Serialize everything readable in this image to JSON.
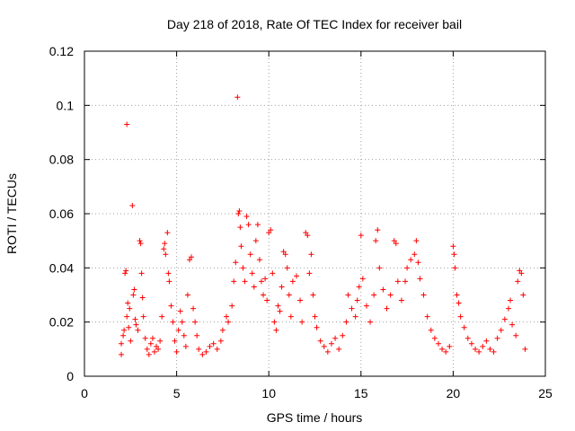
{
  "chart_data": {
    "type": "scatter",
    "title": "Day 218 of 2018, Rate Of TEC Index for receiver bail",
    "xlabel": "GPS time / hours",
    "ylabel": "ROTI / TECUs",
    "xlim": [
      0,
      25
    ],
    "ylim": [
      0,
      0.12
    ],
    "xticks": [
      0,
      5,
      10,
      15,
      20,
      25
    ],
    "xtick_labels": [
      "0",
      "5",
      "10",
      "15",
      "20",
      "25"
    ],
    "yticks": [
      0,
      0.02,
      0.04,
      0.06,
      0.08,
      0.1,
      0.12
    ],
    "ytick_labels": [
      "0",
      "0.02",
      "0.04",
      "0.06",
      "0.08",
      "0.1",
      "0.12"
    ],
    "grid": true,
    "marker": "+",
    "color": "#ff0000",
    "series": [
      {
        "name": "ROTI",
        "points": [
          [
            2.0,
            0.012
          ],
          [
            2.0,
            0.008
          ],
          [
            2.1,
            0.015
          ],
          [
            2.15,
            0.017
          ],
          [
            2.2,
            0.038
          ],
          [
            2.25,
            0.039
          ],
          [
            2.3,
            0.093
          ],
          [
            2.3,
            0.022
          ],
          [
            2.35,
            0.027
          ],
          [
            2.4,
            0.018
          ],
          [
            2.45,
            0.025
          ],
          [
            2.5,
            0.013
          ],
          [
            2.6,
            0.063
          ],
          [
            2.65,
            0.03
          ],
          [
            2.7,
            0.032
          ],
          [
            2.75,
            0.021
          ],
          [
            2.8,
            0.019
          ],
          [
            2.9,
            0.017
          ],
          [
            3.0,
            0.05
          ],
          [
            3.05,
            0.049
          ],
          [
            3.1,
            0.038
          ],
          [
            3.15,
            0.029
          ],
          [
            3.2,
            0.022
          ],
          [
            3.3,
            0.014
          ],
          [
            3.4,
            0.01
          ],
          [
            3.5,
            0.008
          ],
          [
            3.6,
            0.012
          ],
          [
            3.7,
            0.014
          ],
          [
            3.8,
            0.009
          ],
          [
            3.9,
            0.011
          ],
          [
            4.0,
            0.01
          ],
          [
            4.1,
            0.013
          ],
          [
            4.2,
            0.022
          ],
          [
            4.3,
            0.047
          ],
          [
            4.35,
            0.049
          ],
          [
            4.4,
            0.045
          ],
          [
            4.5,
            0.053
          ],
          [
            4.55,
            0.038
          ],
          [
            4.6,
            0.035
          ],
          [
            4.7,
            0.026
          ],
          [
            4.8,
            0.02
          ],
          [
            4.9,
            0.013
          ],
          [
            5.0,
            0.009
          ],
          [
            5.1,
            0.017
          ],
          [
            5.2,
            0.024
          ],
          [
            5.3,
            0.02
          ],
          [
            5.4,
            0.015
          ],
          [
            5.5,
            0.011
          ],
          [
            5.6,
            0.03
          ],
          [
            5.7,
            0.043
          ],
          [
            5.8,
            0.044
          ],
          [
            5.9,
            0.025
          ],
          [
            6.0,
            0.02
          ],
          [
            6.1,
            0.015
          ],
          [
            6.2,
            0.01
          ],
          [
            6.4,
            0.008
          ],
          [
            6.6,
            0.009
          ],
          [
            6.8,
            0.011
          ],
          [
            7.0,
            0.012
          ],
          [
            7.2,
            0.01
          ],
          [
            7.4,
            0.013
          ],
          [
            7.5,
            0.017
          ],
          [
            7.7,
            0.022
          ],
          [
            7.8,
            0.02
          ],
          [
            8.0,
            0.026
          ],
          [
            8.1,
            0.035
          ],
          [
            8.2,
            0.042
          ],
          [
            8.3,
            0.103
          ],
          [
            8.35,
            0.06
          ],
          [
            8.4,
            0.061
          ],
          [
            8.45,
            0.055
          ],
          [
            8.5,
            0.048
          ],
          [
            8.6,
            0.04
          ],
          [
            8.7,
            0.035
          ],
          [
            8.8,
            0.059
          ],
          [
            8.9,
            0.056
          ],
          [
            9.0,
            0.045
          ],
          [
            9.1,
            0.038
          ],
          [
            9.2,
            0.033
          ],
          [
            9.3,
            0.05
          ],
          [
            9.4,
            0.056
          ],
          [
            9.5,
            0.043
          ],
          [
            9.6,
            0.035
          ],
          [
            9.7,
            0.03
          ],
          [
            9.8,
            0.036
          ],
          [
            9.9,
            0.028
          ],
          [
            10.0,
            0.053
          ],
          [
            10.1,
            0.054
          ],
          [
            10.2,
            0.038
          ],
          [
            10.3,
            0.02
          ],
          [
            10.4,
            0.017
          ],
          [
            10.5,
            0.026
          ],
          [
            10.6,
            0.024
          ],
          [
            10.7,
            0.033
          ],
          [
            10.8,
            0.046
          ],
          [
            10.9,
            0.045
          ],
          [
            11.0,
            0.04
          ],
          [
            11.1,
            0.03
          ],
          [
            11.2,
            0.022
          ],
          [
            11.3,
            0.035
          ],
          [
            11.5,
            0.037
          ],
          [
            11.7,
            0.028
          ],
          [
            11.8,
            0.02
          ],
          [
            12.0,
            0.053
          ],
          [
            12.1,
            0.052
          ],
          [
            12.2,
            0.038
          ],
          [
            12.3,
            0.045
          ],
          [
            12.4,
            0.03
          ],
          [
            12.5,
            0.022
          ],
          [
            12.6,
            0.018
          ],
          [
            12.8,
            0.013
          ],
          [
            13.0,
            0.011
          ],
          [
            13.2,
            0.009
          ],
          [
            13.4,
            0.012
          ],
          [
            13.6,
            0.014
          ],
          [
            13.8,
            0.01
          ],
          [
            14.0,
            0.015
          ],
          [
            14.2,
            0.02
          ],
          [
            14.3,
            0.03
          ],
          [
            14.5,
            0.025
          ],
          [
            14.7,
            0.022
          ],
          [
            14.8,
            0.028
          ],
          [
            14.9,
            0.033
          ],
          [
            15.0,
            0.052
          ],
          [
            15.1,
            0.036
          ],
          [
            15.3,
            0.026
          ],
          [
            15.5,
            0.02
          ],
          [
            15.7,
            0.03
          ],
          [
            15.8,
            0.05
          ],
          [
            15.9,
            0.054
          ],
          [
            16.0,
            0.04
          ],
          [
            16.2,
            0.032
          ],
          [
            16.4,
            0.025
          ],
          [
            16.6,
            0.03
          ],
          [
            16.8,
            0.05
          ],
          [
            16.9,
            0.049
          ],
          [
            17.0,
            0.035
          ],
          [
            17.2,
            0.028
          ],
          [
            17.4,
            0.035
          ],
          [
            17.5,
            0.04
          ],
          [
            17.7,
            0.043
          ],
          [
            17.9,
            0.045
          ],
          [
            18.0,
            0.05
          ],
          [
            18.1,
            0.042
          ],
          [
            18.2,
            0.036
          ],
          [
            18.4,
            0.03
          ],
          [
            18.6,
            0.022
          ],
          [
            18.8,
            0.017
          ],
          [
            19.0,
            0.014
          ],
          [
            19.2,
            0.012
          ],
          [
            19.4,
            0.01
          ],
          [
            19.6,
            0.009
          ],
          [
            19.8,
            0.011
          ],
          [
            20.0,
            0.048
          ],
          [
            20.05,
            0.045
          ],
          [
            20.1,
            0.04
          ],
          [
            20.2,
            0.03
          ],
          [
            20.3,
            0.027
          ],
          [
            20.4,
            0.022
          ],
          [
            20.6,
            0.018
          ],
          [
            20.8,
            0.014
          ],
          [
            21.0,
            0.012
          ],
          [
            21.2,
            0.01
          ],
          [
            21.4,
            0.009
          ],
          [
            21.6,
            0.011
          ],
          [
            21.8,
            0.013
          ],
          [
            22.0,
            0.01
          ],
          [
            22.2,
            0.009
          ],
          [
            22.4,
            0.014
          ],
          [
            22.6,
            0.017
          ],
          [
            22.8,
            0.021
          ],
          [
            23.0,
            0.025
          ],
          [
            23.1,
            0.028
          ],
          [
            23.2,
            0.019
          ],
          [
            23.4,
            0.015
          ],
          [
            23.5,
            0.035
          ],
          [
            23.6,
            0.039
          ],
          [
            23.7,
            0.038
          ],
          [
            23.8,
            0.03
          ],
          [
            23.9,
            0.01
          ]
        ]
      }
    ]
  }
}
